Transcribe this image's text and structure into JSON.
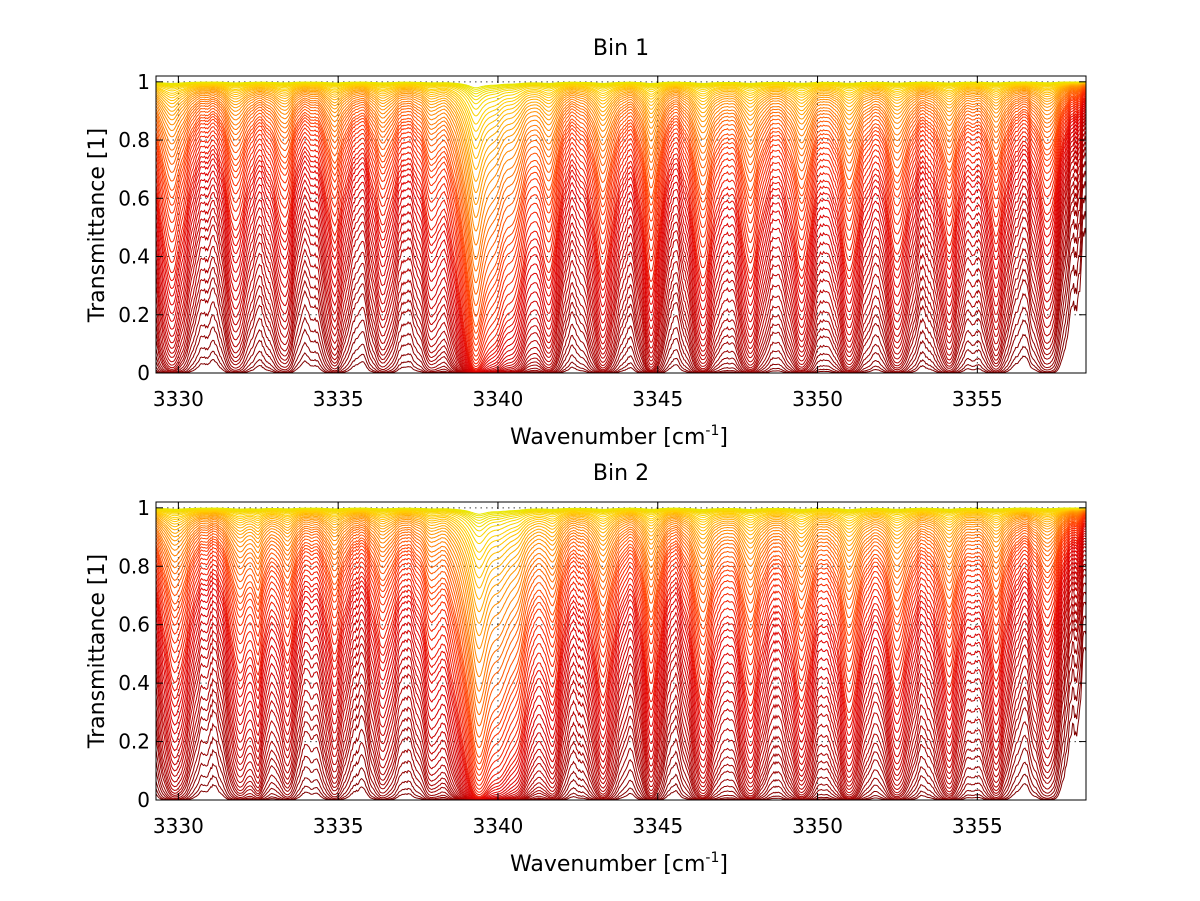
{
  "chart_data": [
    {
      "type": "line",
      "title": "Bin 1",
      "xlabel": "Wavenumber [cm",
      "xlabel_superscript": "-1",
      "xlabel_suffix": "]",
      "ylabel": "Transmittance [1]",
      "xlim": [
        3329.3,
        3358.4
      ],
      "ylim": [
        0,
        1.02
      ],
      "xticks": [
        3330,
        3335,
        3340,
        3345,
        3350,
        3355
      ],
      "xtick_labels": [
        "3330",
        "3335",
        "3340",
        "3345",
        "3350",
        "3355"
      ],
      "yticks": [
        0,
        0.2,
        0.4,
        0.6,
        0.8,
        1
      ],
      "ytick_labels": [
        "0",
        "0.2",
        "0.4",
        "0.6",
        "0.8",
        "1"
      ],
      "grid": true,
      "colormap": [
        "#7f0000",
        "#b30000",
        "#e00000",
        "#ff3300",
        "#ff8000",
        "#ffcc00",
        "#e8e800"
      ],
      "series_description": "family of ~60 transmittance spectra with scaling optical depth",
      "optical_depth_scale": [
        0.004,
        0.008,
        0.015,
        0.03,
        0.05,
        0.08,
        0.12,
        0.18,
        0.25,
        0.35,
        0.45,
        0.6,
        0.8,
        1.0,
        1.3,
        1.7,
        2.2,
        3.0,
        4.0,
        6.0,
        10.0
      ],
      "lines": [
        {
          "center": 3329.8,
          "depth": 0.7,
          "width": 0.35
        },
        {
          "center": 3331.8,
          "depth": 0.45,
          "width": 0.3
        },
        {
          "center": 3333.3,
          "depth": 0.42,
          "width": 0.3
        },
        {
          "center": 3334.9,
          "depth": 0.42,
          "width": 0.3
        },
        {
          "center": 3336.4,
          "depth": 0.38,
          "width": 0.3
        },
        {
          "center": 3337.9,
          "depth": 0.35,
          "width": 0.3
        },
        {
          "center": 3339.3,
          "depth": 2.4,
          "width": 0.25
        },
        {
          "center": 3339.9,
          "depth": 0.9,
          "width": 0.4
        },
        {
          "center": 3340.5,
          "depth": 0.5,
          "width": 0.3
        },
        {
          "center": 3341.6,
          "depth": 0.6,
          "width": 0.25
        },
        {
          "center": 3343.3,
          "depth": 0.65,
          "width": 0.3
        },
        {
          "center": 3344.8,
          "depth": 0.7,
          "width": 0.22
        },
        {
          "center": 3346.4,
          "depth": 0.68,
          "width": 0.3
        },
        {
          "center": 3347.9,
          "depth": 0.66,
          "width": 0.3
        },
        {
          "center": 3349.5,
          "depth": 0.64,
          "width": 0.3
        },
        {
          "center": 3351.0,
          "depth": 0.62,
          "width": 0.3
        },
        {
          "center": 3352.5,
          "depth": 0.55,
          "width": 0.3
        },
        {
          "center": 3354.1,
          "depth": 0.5,
          "width": 0.3
        },
        {
          "center": 3355.6,
          "depth": 0.45,
          "width": 0.3
        },
        {
          "center": 3357.2,
          "depth": 0.38,
          "width": 0.3
        }
      ]
    },
    {
      "type": "line",
      "title": "Bin 2",
      "xlabel": "Wavenumber [cm",
      "xlabel_superscript": "-1",
      "xlabel_suffix": "]",
      "ylabel": "Transmittance [1]",
      "xlim": [
        3329.3,
        3358.4
      ],
      "ylim": [
        0,
        1.02
      ],
      "xticks": [
        3330,
        3335,
        3340,
        3345,
        3350,
        3355
      ],
      "xtick_labels": [
        "3330",
        "3335",
        "3340",
        "3345",
        "3350",
        "3355"
      ],
      "yticks": [
        0,
        0.2,
        0.4,
        0.6,
        0.8,
        1
      ],
      "ytick_labels": [
        "0",
        "0.2",
        "0.4",
        "0.6",
        "0.8",
        "1"
      ],
      "grid": true,
      "colormap": [
        "#7f0000",
        "#b30000",
        "#e00000",
        "#ff3300",
        "#ff8000",
        "#ffcc00",
        "#e8e800"
      ],
      "series_description": "family of ~60 transmittance spectra with scaling optical depth",
      "optical_depth_scale": [
        0.004,
        0.008,
        0.015,
        0.03,
        0.05,
        0.08,
        0.12,
        0.18,
        0.25,
        0.35,
        0.45,
        0.6,
        0.8,
        1.0,
        1.3,
        1.7,
        2.2,
        3.0,
        4.0,
        6.0,
        10.0
      ],
      "lines": [
        {
          "center": 3329.9,
          "depth": 0.6,
          "width": 0.35
        },
        {
          "center": 3331.9,
          "depth": 0.5,
          "width": 0.3
        },
        {
          "center": 3332.5,
          "depth": 0.35,
          "width": 0.15
        },
        {
          "center": 3333.4,
          "depth": 0.4,
          "width": 0.3
        },
        {
          "center": 3334.9,
          "depth": 0.38,
          "width": 0.3
        },
        {
          "center": 3336.4,
          "depth": 0.36,
          "width": 0.3
        },
        {
          "center": 3337.9,
          "depth": 0.34,
          "width": 0.3
        },
        {
          "center": 3339.4,
          "depth": 2.6,
          "width": 0.3
        },
        {
          "center": 3340.1,
          "depth": 0.95,
          "width": 0.4
        },
        {
          "center": 3340.6,
          "depth": 0.5,
          "width": 0.3
        },
        {
          "center": 3341.7,
          "depth": 0.55,
          "width": 0.25
        },
        {
          "center": 3343.3,
          "depth": 0.62,
          "width": 0.3
        },
        {
          "center": 3344.8,
          "depth": 0.6,
          "width": 0.22
        },
        {
          "center": 3346.4,
          "depth": 0.68,
          "width": 0.3
        },
        {
          "center": 3347.9,
          "depth": 0.7,
          "width": 0.3
        },
        {
          "center": 3349.5,
          "depth": 0.66,
          "width": 0.3
        },
        {
          "center": 3351.0,
          "depth": 0.72,
          "width": 0.3
        },
        {
          "center": 3352.5,
          "depth": 0.6,
          "width": 0.3
        },
        {
          "center": 3354.1,
          "depth": 0.58,
          "width": 0.3
        },
        {
          "center": 3355.6,
          "depth": 0.5,
          "width": 0.3
        },
        {
          "center": 3357.2,
          "depth": 0.35,
          "width": 0.3
        }
      ]
    }
  ]
}
